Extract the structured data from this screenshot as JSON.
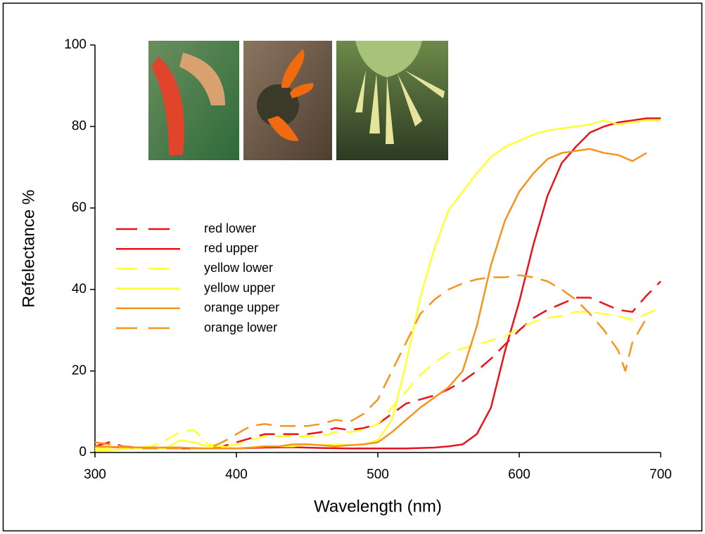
{
  "chart_data": {
    "type": "line",
    "x_label": "Wavelength (nm)",
    "y_label": "Refelectance %",
    "xlim": [
      300,
      700
    ],
    "xticks": [
      300,
      400,
      500,
      600,
      700
    ],
    "ylim": [
      0,
      100
    ],
    "yticks": [
      0,
      20,
      40,
      60,
      80,
      100
    ],
    "series": [
      {
        "name": "red lower",
        "color": "#e8141c",
        "dashed": true,
        "x": [
          300,
          310,
          320,
          330,
          340,
          350,
          360,
          370,
          380,
          390,
          400,
          410,
          420,
          430,
          440,
          450,
          460,
          470,
          480,
          490,
          500,
          510,
          520,
          530,
          540,
          550,
          560,
          570,
          580,
          590,
          600,
          610,
          620,
          630,
          640,
          650,
          660,
          670,
          680,
          690,
          700
        ],
        "values": [
          1.5,
          2.5,
          1.5,
          1.2,
          1.2,
          1.2,
          1.2,
          1,
          1,
          1.5,
          2.5,
          3.5,
          4.5,
          4.5,
          4.5,
          4.5,
          5,
          6,
          5.5,
          6,
          7,
          9.5,
          12,
          13,
          14,
          15.5,
          17.5,
          20,
          23,
          26.5,
          30,
          33,
          35,
          36.5,
          38,
          38,
          36.5,
          35,
          34.5,
          38.5,
          42
        ]
      },
      {
        "name": "red upper",
        "color": "#e8141c",
        "dashed": false,
        "x": [
          300,
          320,
          340,
          360,
          380,
          400,
          420,
          440,
          460,
          480,
          500,
          520,
          540,
          550,
          560,
          570,
          580,
          590,
          600,
          610,
          620,
          630,
          640,
          650,
          660,
          670,
          680,
          690,
          700
        ],
        "values": [
          1.5,
          1.2,
          1.2,
          1,
          1,
          1,
          1.2,
          1.3,
          1.1,
          1,
          1,
          1,
          1.2,
          1.5,
          2,
          4.5,
          11,
          25,
          37,
          51,
          63,
          71,
          75,
          78.5,
          80,
          81,
          81.5,
          82,
          82
        ]
      },
      {
        "name": "yellow lower",
        "color": "#ffff33",
        "dashed": true,
        "x": [
          300,
          310,
          320,
          330,
          340,
          350,
          360,
          370,
          380,
          390,
          400,
          410,
          420,
          430,
          440,
          450,
          460,
          470,
          480,
          490,
          500,
          510,
          520,
          530,
          540,
          550,
          560,
          570,
          580,
          590,
          600,
          610,
          620,
          630,
          640,
          650,
          660,
          670,
          680,
          690,
          700
        ],
        "values": [
          1,
          1,
          1,
          1.2,
          1.5,
          3,
          5,
          5.5,
          2,
          1.5,
          2,
          3,
          4,
          4,
          4,
          4,
          4,
          5,
          5,
          5.5,
          7,
          11,
          15,
          19,
          22,
          24.5,
          25.5,
          26.5,
          27.5,
          28.5,
          30.5,
          32,
          33,
          33.5,
          34.5,
          34.5,
          34,
          33.5,
          32.5,
          34,
          35.5
        ]
      },
      {
        "name": "yellow upper",
        "color": "#ffff33",
        "dashed": false,
        "x": [
          300,
          310,
          320,
          330,
          340,
          350,
          360,
          370,
          380,
          390,
          400,
          410,
          420,
          430,
          440,
          450,
          460,
          470,
          480,
          490,
          500,
          510,
          520,
          530,
          540,
          550,
          560,
          570,
          580,
          590,
          600,
          610,
          620,
          630,
          640,
          650,
          660,
          670,
          680,
          690,
          700
        ],
        "values": [
          0.5,
          0.5,
          0.8,
          1,
          1,
          1,
          3,
          2.5,
          1.5,
          1.5,
          1,
          1.2,
          1.5,
          1.5,
          1.5,
          2,
          1.8,
          2,
          1.8,
          2,
          3,
          8,
          22,
          38,
          50,
          59.5,
          64,
          68.5,
          72.5,
          75,
          76.5,
          78,
          79,
          79.5,
          80,
          80.5,
          81.5,
          80.5,
          81,
          81.5,
          81.5
        ]
      },
      {
        "name": "orange upper",
        "color": "#f7941d",
        "dashed": false,
        "x": [
          300,
          320,
          340,
          360,
          380,
          400,
          410,
          420,
          430,
          440,
          450,
          460,
          470,
          480,
          490,
          500,
          510,
          520,
          530,
          540,
          550,
          560,
          570,
          580,
          590,
          600,
          610,
          620,
          630,
          640,
          650,
          660,
          670,
          680,
          690
        ],
        "values": [
          1.5,
          1.3,
          1.2,
          1.2,
          1,
          1,
          1.2,
          1.5,
          1.5,
          2,
          2,
          1.8,
          1.5,
          1.8,
          2,
          2.5,
          5,
          8,
          11,
          13.5,
          16,
          20,
          31,
          46,
          57,
          64,
          68.5,
          72,
          73.5,
          74,
          74.5,
          73.5,
          73,
          71.5,
          73.5
        ]
      },
      {
        "name": "orange lower",
        "color": "#f7941d",
        "dashed": true,
        "x": [
          300,
          310,
          320,
          330,
          340,
          350,
          360,
          370,
          380,
          390,
          400,
          410,
          420,
          430,
          440,
          450,
          460,
          470,
          480,
          490,
          500,
          510,
          520,
          530,
          540,
          550,
          560,
          570,
          580,
          590,
          600,
          610,
          620,
          630,
          640,
          650,
          660,
          670,
          675,
          680,
          690
        ],
        "values": [
          2.5,
          2,
          1.5,
          1,
          1,
          1,
          1,
          1,
          1,
          2.5,
          4.5,
          6.5,
          7,
          6.5,
          6.5,
          6.5,
          7,
          8,
          7.5,
          9.5,
          13,
          20,
          27,
          34,
          37.5,
          40,
          41.5,
          42.5,
          43,
          43,
          43.5,
          43,
          42,
          40,
          37.5,
          34,
          30,
          25,
          20,
          27,
          33
        ]
      }
    ]
  }
}
